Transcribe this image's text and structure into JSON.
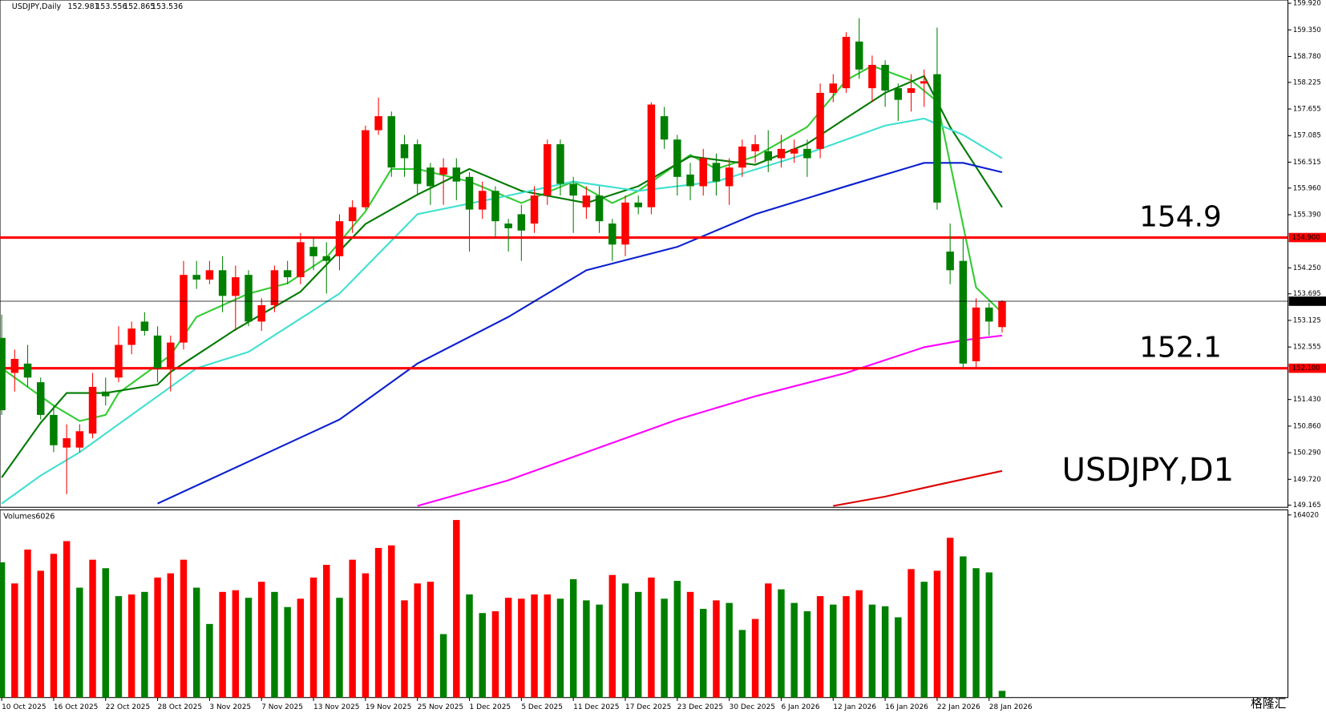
{
  "chart_data": [
    {
      "type": "candlestick",
      "symbol": "USDJPY,Daily",
      "annotation": "USDJPY,D1",
      "up_color": "#ff0000",
      "down_color": "#008000",
      "xlim": [
        -0.13,
        99
      ],
      "ylim": [
        149.12,
        159.99
      ],
      "yticks": [
        {
          "value": 159.92,
          "label": "159.920"
        },
        {
          "value": 159.35,
          "label": "159.350"
        },
        {
          "value": 158.78,
          "label": "158.780"
        },
        {
          "value": 158.225,
          "label": "158.225"
        },
        {
          "value": 157.655,
          "label": "157.655"
        },
        {
          "value": 157.085,
          "label": "157.085"
        },
        {
          "value": 156.515,
          "label": "156.515"
        },
        {
          "value": 155.96,
          "label": "155.960"
        },
        {
          "value": 155.39,
          "label": "155.390"
        },
        {
          "value": 154.25,
          "label": "154.250"
        },
        {
          "value": 153.695,
          "label": "153.695"
        },
        {
          "value": 153.125,
          "label": "153.125"
        },
        {
          "value": 152.555,
          "label": "152.555"
        },
        {
          "value": 151.43,
          "label": "151.430"
        },
        {
          "value": 150.86,
          "label": "150.860"
        },
        {
          "value": 150.29,
          "label": "150.290"
        },
        {
          "value": 149.72,
          "label": "149.720"
        },
        {
          "value": 149.165,
          "label": "149.165"
        }
      ],
      "xticks": [
        {
          "value": 0,
          "label": "10 Oct 2025"
        },
        {
          "value": 4,
          "label": "16 Oct 2025"
        },
        {
          "value": 8,
          "label": "22 Oct 2025"
        },
        {
          "value": 12,
          "label": "28 Oct 2025"
        },
        {
          "value": 16,
          "label": "3 Nov 2025"
        },
        {
          "value": 20,
          "label": "7 Nov 2025"
        },
        {
          "value": 24,
          "label": "13 Nov 2025"
        },
        {
          "value": 28,
          "label": "19 Nov 2025"
        },
        {
          "value": 32,
          "label": "25 Nov 2025"
        },
        {
          "value": 36,
          "label": "1 Dec 2025"
        },
        {
          "value": 40,
          "label": "5 Dec 2025"
        },
        {
          "value": 44,
          "label": "11 Dec 2025"
        },
        {
          "value": 48,
          "label": "17 Dec 2025"
        },
        {
          "value": 52,
          "label": "23 Dec 2025"
        },
        {
          "value": 56,
          "label": "30 Dec 2025"
        },
        {
          "value": 60,
          "label": "6 Jan 2026"
        },
        {
          "value": 64,
          "label": "12 Jan 2026"
        },
        {
          "value": 68,
          "label": "16 Jan 2026"
        },
        {
          "value": 72,
          "label": "22 Jan 2026"
        },
        {
          "value": 76,
          "label": "28 Jan 2026"
        }
      ],
      "open": [
        152.75,
        152.0,
        152.2,
        151.8,
        151.1,
        150.4,
        150.4,
        150.7,
        151.6,
        151.9,
        152.6,
        153.1,
        152.8,
        152.1,
        152.65,
        154.1,
        154.0,
        154.2,
        153.65,
        154.1,
        153.1,
        153.45,
        154.2,
        154.05,
        154.7,
        154.5,
        154.5,
        155.25,
        155.55,
        157.2,
        157.5,
        156.9,
        156.9,
        156.4,
        156.25,
        156.4,
        156.2,
        155.5,
        155.9,
        155.2,
        155.4,
        155.2,
        155.8,
        156.9,
        156.05,
        155.55,
        155.8,
        155.2,
        154.75,
        155.65,
        155.55,
        157.5,
        157.0,
        156.25,
        156.0,
        156.5,
        156.0,
        156.4,
        156.75,
        156.75,
        156.6,
        156.7,
        156.8,
        156.8,
        158.0,
        158.1,
        159.1,
        158.1,
        158.6,
        158.1,
        158.0,
        158.2,
        158.4,
        154.6,
        154.4,
        152.25,
        153.4,
        152.981
      ],
      "high": [
        153.25,
        152.5,
        152.6,
        151.9,
        151.3,
        150.9,
        150.9,
        152.0,
        151.9,
        153.0,
        153.1,
        153.3,
        153.0,
        152.8,
        154.4,
        154.4,
        154.4,
        154.5,
        154.3,
        154.2,
        153.6,
        154.3,
        154.4,
        155.0,
        154.9,
        154.8,
        155.4,
        155.7,
        157.3,
        157.9,
        157.6,
        157.1,
        157.0,
        156.5,
        156.6,
        156.6,
        156.3,
        156.1,
        156.0,
        155.3,
        155.6,
        156.0,
        157.0,
        157.0,
        156.2,
        156.0,
        156.0,
        155.3,
        155.8,
        155.8,
        157.8,
        157.7,
        157.1,
        156.5,
        156.8,
        156.7,
        156.6,
        157.0,
        157.1,
        157.2,
        157.1,
        157.0,
        157.0,
        158.2,
        158.4,
        159.3,
        159.6,
        158.8,
        158.7,
        158.2,
        158.4,
        158.5,
        159.4,
        155.2,
        154.9,
        153.6,
        153.5,
        153.556
      ],
      "low": [
        151.1,
        151.6,
        151.7,
        151.0,
        150.3,
        149.4,
        150.3,
        150.6,
        151.3,
        151.8,
        152.4,
        152.8,
        151.8,
        151.6,
        152.5,
        153.8,
        153.9,
        153.3,
        152.9,
        153.0,
        152.9,
        153.3,
        153.9,
        153.9,
        154.2,
        153.7,
        154.2,
        155.0,
        155.5,
        157.1,
        156.2,
        156.2,
        155.8,
        155.6,
        155.6,
        155.7,
        154.6,
        155.3,
        154.9,
        154.6,
        154.4,
        155.0,
        155.6,
        155.8,
        155.0,
        155.3,
        155.0,
        154.4,
        154.5,
        155.4,
        155.4,
        156.8,
        155.8,
        155.7,
        155.8,
        155.8,
        155.6,
        156.2,
        156.5,
        156.3,
        156.4,
        156.5,
        156.2,
        156.6,
        157.8,
        158.0,
        158.3,
        157.8,
        157.7,
        157.4,
        157.6,
        157.7,
        155.5,
        153.9,
        152.1,
        152.1,
        152.8,
        152.865
      ],
      "close": [
        151.2,
        152.3,
        151.9,
        151.1,
        150.45,
        150.6,
        150.75,
        151.7,
        151.5,
        152.6,
        152.95,
        152.9,
        152.1,
        152.65,
        154.1,
        154.0,
        154.2,
        153.65,
        154.05,
        153.1,
        153.45,
        154.2,
        154.05,
        154.8,
        154.5,
        154.4,
        155.25,
        155.55,
        157.2,
        157.5,
        156.4,
        156.6,
        156.05,
        156.0,
        156.4,
        156.1,
        155.5,
        155.9,
        155.25,
        155.1,
        155.05,
        155.8,
        156.9,
        156.05,
        155.8,
        155.8,
        155.25,
        154.75,
        155.65,
        155.55,
        157.75,
        157.0,
        156.2,
        156.0,
        156.6,
        156.1,
        156.4,
        156.85,
        156.9,
        156.55,
        156.8,
        156.8,
        156.6,
        158.0,
        158.2,
        159.2,
        158.5,
        158.6,
        158.05,
        157.85,
        158.1,
        158.25,
        155.65,
        154.2,
        152.2,
        153.4,
        153.1,
        153.536
      ],
      "price_line_color": "#000000",
      "hlines": [
        {
          "value": 154.9,
          "tag_label": "154.900",
          "color": "#ff0000"
        },
        {
          "value": 152.1,
          "tag_label": "152.100",
          "color": "#ff0000"
        }
      ],
      "series": [
        {
          "color": "#33cc33",
          "x": [
            0,
            4,
            6,
            8,
            9,
            13,
            15,
            19,
            22,
            25,
            28,
            30,
            32,
            36,
            40,
            44,
            47,
            49,
            53,
            55,
            58,
            62,
            65,
            67,
            70,
            72,
            75,
            77
          ],
          "values": [
            152.1,
            151.3,
            150.97,
            151.1,
            151.57,
            152.38,
            153.2,
            153.7,
            153.92,
            154.47,
            155.46,
            156.37,
            156.37,
            156.1,
            155.64,
            156.1,
            155.64,
            155.9,
            156.67,
            156.37,
            156.64,
            157.27,
            158.27,
            158.58,
            158.27,
            157.82,
            153.83,
            153.29
          ]
        },
        {
          "color": "#007a00",
          "x": [
            0,
            3,
            5,
            8,
            12,
            13,
            18,
            23,
            28,
            32,
            36,
            40,
            45,
            49,
            53,
            58,
            62,
            65,
            68,
            71,
            73,
            77
          ],
          "values": [
            149.76,
            150.93,
            151.57,
            151.57,
            151.75,
            152.02,
            152.93,
            153.74,
            155.19,
            155.82,
            156.37,
            155.9,
            155.64,
            156.0,
            156.64,
            156.46,
            156.91,
            157.46,
            158.0,
            158.36,
            157.27,
            155.55
          ]
        },
        {
          "color": "#40e0d0",
          "x": [
            0,
            3,
            6,
            10,
            15,
            19,
            26,
            32,
            39,
            44,
            49,
            55,
            62,
            68,
            71,
            74,
            77
          ],
          "values": [
            149.2,
            149.8,
            150.3,
            151.1,
            152.1,
            152.45,
            153.7,
            155.4,
            155.8,
            156.1,
            155.9,
            156.1,
            156.7,
            157.3,
            157.45,
            157.1,
            156.6
          ]
        },
        {
          "color": "#0a1fd0",
          "x": [
            12,
            19,
            26,
            32,
            39,
            45,
            52,
            58,
            65,
            71,
            74,
            77
          ],
          "values": [
            149.2,
            150.1,
            151.0,
            152.2,
            153.2,
            154.2,
            154.7,
            155.4,
            156.0,
            156.5,
            156.5,
            156.3
          ]
        },
        {
          "color": "#ff00ff",
          "x": [
            32,
            39,
            45,
            52,
            58,
            65,
            71,
            74,
            77
          ],
          "values": [
            149.15,
            149.7,
            150.3,
            151.0,
            151.5,
            152.0,
            152.55,
            152.7,
            152.8
          ]
        },
        {
          "color": "#dd0000",
          "x": [
            64,
            68,
            72,
            77
          ],
          "values": [
            149.15,
            149.35,
            149.6,
            149.9
          ]
        }
      ]
    },
    {
      "type": "bar",
      "title": "Volumes",
      "ylim": [
        0,
        168600
      ],
      "yticks": [
        164020
      ],
      "values": [
        121500,
        102500,
        132900,
        113900,
        129100,
        140500,
        98700,
        123800,
        116200,
        91100,
        92600,
        94900,
        107800,
        111600,
        123800,
        98700,
        66100,
        94900,
        96400,
        89600,
        104000,
        94900,
        81300,
        88800,
        107800,
        119200,
        89600,
        123800,
        111600,
        134400,
        136700,
        87300,
        102500,
        104000,
        57000,
        159500,
        92600,
        75900,
        77500,
        89600,
        88800,
        92600,
        92600,
        88800,
        106300,
        87300,
        83500,
        110100,
        102500,
        94900,
        107800,
        88800,
        104800,
        94900,
        79700,
        87300,
        85000,
        60700,
        70600,
        102500,
        97200,
        85000,
        77500,
        91100,
        83500,
        91100,
        96400,
        83500,
        82000,
        72100,
        115400,
        104000,
        113900,
        143500,
        126800,
        116200,
        112400,
        6026
      ],
      "colors": [
        "green",
        "red",
        "red",
        "red",
        "red",
        "red",
        "green",
        "red",
        "green",
        "green",
        "red",
        "green",
        "red",
        "red",
        "red",
        "green",
        "green",
        "red",
        "red",
        "green",
        "red",
        "green",
        "green",
        "red",
        "red",
        "red",
        "green",
        "red",
        "red",
        "red",
        "red",
        "red",
        "red",
        "red",
        "green",
        "red",
        "green",
        "green",
        "red",
        "red",
        "red",
        "red",
        "red",
        "green",
        "green",
        "green",
        "green",
        "red",
        "green",
        "green",
        "red",
        "green",
        "green",
        "red",
        "green",
        "red",
        "green",
        "green",
        "red",
        "red",
        "green",
        "green",
        "green",
        "red",
        "green",
        "red",
        "red",
        "green",
        "green",
        "green",
        "red",
        "green",
        "red",
        "red",
        "green",
        "green",
        "green",
        "green"
      ]
    }
  ],
  "watermark": "格隆汇"
}
